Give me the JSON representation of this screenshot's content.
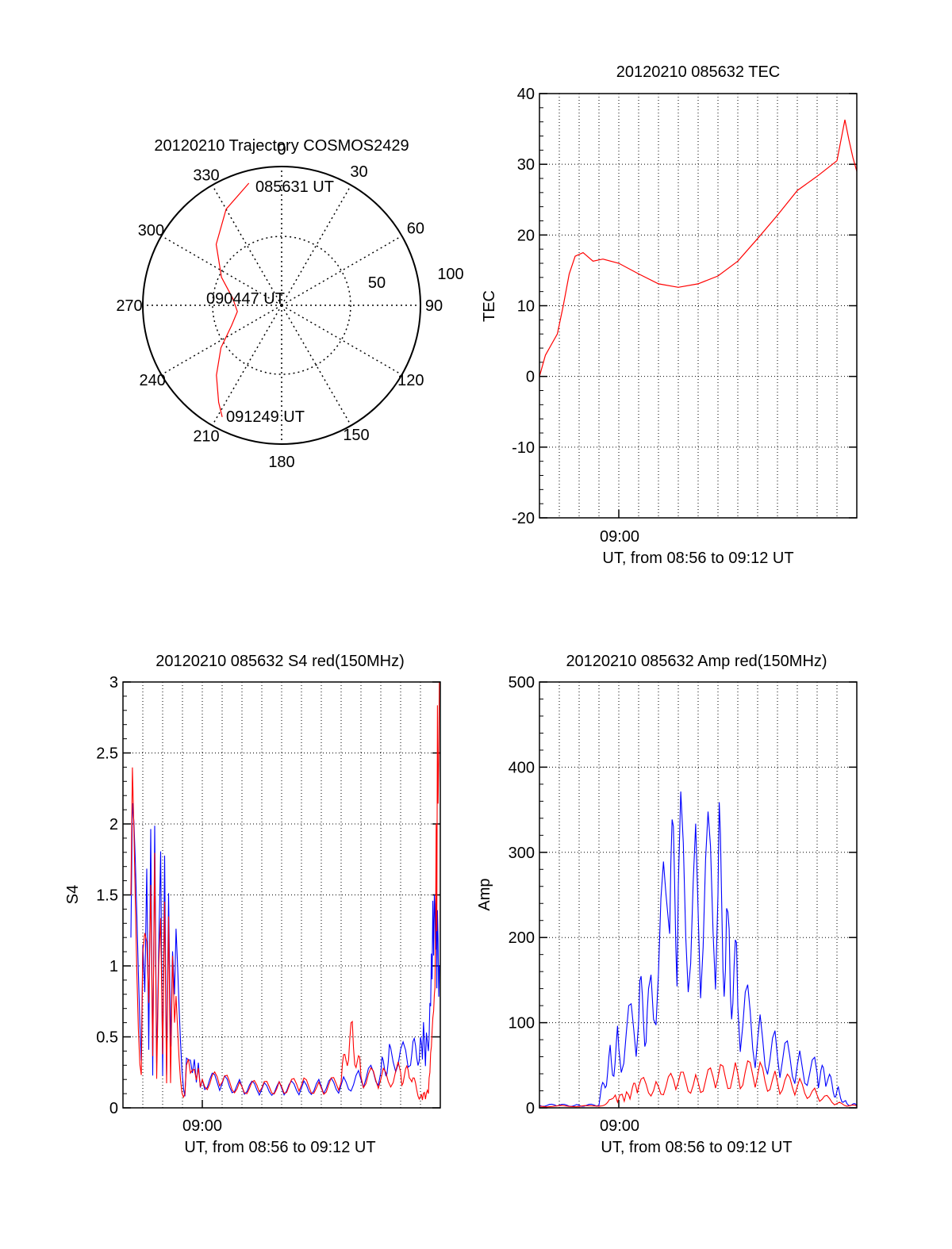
{
  "chart_data": [
    {
      "type": "polar",
      "title": "20120210 Trajectory COSMOS2429",
      "azimuth_ticks": [
        "0",
        "30",
        "60",
        "90",
        "120",
        "150",
        "180",
        "210",
        "240",
        "270",
        "300",
        "330"
      ],
      "radial_labels": [
        "50",
        "100"
      ],
      "trajectory": {
        "azimuth_deg": [
          345,
          330,
          313,
          295,
          278,
          262,
          248,
          235,
          223,
          213,
          208
        ],
        "elevation_deg": [
          8,
          18,
          32,
          47,
          58,
          61,
          55,
          42,
          28,
          15,
          8
        ],
        "color": "#ff0000"
      },
      "annotations": [
        "085631 UT",
        "090447 UT",
        "091249 UT"
      ]
    },
    {
      "type": "line",
      "title": "20120210 085632 TEC",
      "xlabel": "UT, from 08:56 to 09:12 UT",
      "ylabel": "TEC",
      "x_tick_labels": [
        "09:00"
      ],
      "y_tick_labels": [
        "40",
        "30",
        "20",
        "10",
        "0",
        "-10",
        "-20"
      ],
      "ylim": [
        -20,
        40
      ],
      "grid": true,
      "series": [
        {
          "color": "#ff0000",
          "x_min": [
            0,
            0.3,
            0.6,
            0.9,
            1.2,
            1.5,
            1.8,
            2.2,
            2.7,
            3.2,
            4.0,
            5.0,
            6.0,
            7.0,
            8.0,
            9.0,
            10.0,
            11.0,
            12.0,
            13.0,
            14.0,
            15.0,
            15.4,
            15.6,
            15.8,
            16.0
          ],
          "values": [
            0,
            3,
            4.5,
            6,
            10,
            14.5,
            17,
            17.5,
            16.3,
            16.6,
            16,
            14.5,
            13.1,
            12.6,
            13.1,
            14.2,
            16.3,
            19.5,
            22.8,
            26.3,
            28.3,
            30.5,
            36.3,
            33.5,
            31,
            29
          ]
        }
      ]
    },
    {
      "type": "line",
      "title": "20120210 085632 S4 red(150MHz)",
      "xlabel": "UT, from 08:56 to 09:12 UT",
      "ylabel": "S4",
      "x_tick_labels": [
        "09:00"
      ],
      "y_tick_labels": [
        "3",
        "2.5",
        "2",
        "1.5",
        "1",
        "0.5",
        "0"
      ],
      "ylim": [
        0,
        3
      ],
      "grid": true,
      "series": [
        {
          "color": "#0000ff",
          "x_min": [
            0.4,
            1.0,
            1.8,
            2.6,
            3.2,
            4.0,
            5.0,
            6.0,
            7.0,
            8.0,
            9.0,
            10.0,
            11.0,
            12.0,
            13.0,
            13.5,
            14.5,
            15.0,
            15.4,
            15.7,
            15.95
          ],
          "values": [
            1.2,
            1.15,
            1.1,
            0.8,
            0.35,
            0.2,
            0.17,
            0.15,
            0.13,
            0.14,
            0.14,
            0.15,
            0.16,
            0.2,
            0.25,
            0.42,
            0.3,
            0.5,
            0.4,
            1.5,
            1.0
          ]
        },
        {
          "color": "#ff0000",
          "x_min": [
            0.4,
            1.0,
            1.8,
            2.6,
            3.2,
            4.0,
            5.0,
            6.0,
            7.0,
            8.0,
            9.0,
            10.0,
            11.0,
            11.5,
            12.0,
            13.0,
            14.0,
            14.5,
            15.0,
            15.4,
            15.7,
            15.95
          ],
          "values": [
            1.5,
            1.1,
            1.0,
            0.6,
            0.3,
            0.2,
            0.18,
            0.15,
            0.14,
            0.15,
            0.16,
            0.14,
            0.18,
            0.6,
            0.22,
            0.2,
            0.25,
            0.2,
            0.08,
            0.1,
            0.8,
            3.0
          ]
        }
      ]
    },
    {
      "type": "line",
      "title": "20120210 085632 Amp red(150MHz)",
      "xlabel": "UT, from 08:56 to 09:12 UT",
      "ylabel": "Amp",
      "x_tick_labels": [
        "09:00"
      ],
      "y_tick_labels": [
        "500",
        "400",
        "300",
        "200",
        "100",
        "0"
      ],
      "ylim": [
        0,
        500
      ],
      "grid": true,
      "series": [
        {
          "color": "#0000ff",
          "x_min": [
            0,
            1.0,
            2.0,
            3.0,
            3.5,
            4.0,
            5.0,
            5.5,
            6.5,
            7.0,
            8.0,
            9.0,
            9.5,
            10.0,
            11.0,
            12.0,
            13.0,
            14.0,
            14.5,
            15.0,
            15.5,
            16.0
          ],
          "values": [
            3,
            3,
            3,
            3,
            60,
            70,
            100,
            140,
            220,
            260,
            230,
            250,
            230,
            120,
            80,
            60,
            50,
            40,
            30,
            20,
            5,
            3
          ]
        },
        {
          "color": "#ff0000",
          "x_min": [
            0,
            3.0,
            3.6,
            4.5,
            5.0,
            6.0,
            7.0,
            8.0,
            9.0,
            10.0,
            11.0,
            12.0,
            13.0,
            14.0,
            15.0,
            16.0
          ],
          "values": [
            2,
            2,
            10,
            15,
            25,
            25,
            30,
            30,
            35,
            40,
            38,
            30,
            25,
            15,
            5,
            2
          ]
        }
      ]
    }
  ]
}
